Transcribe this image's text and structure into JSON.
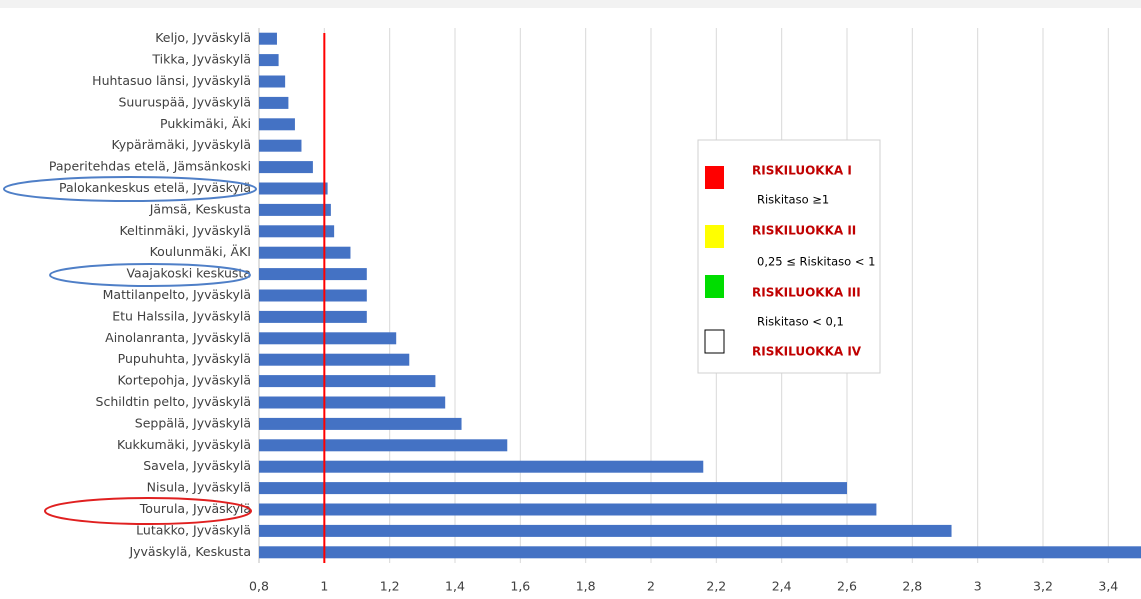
{
  "chart_data": {
    "type": "barh",
    "categories": [
      "Keljo, Jyväskylä",
      "Tikka, Jyväskylä",
      "Huhtasuo länsi, Jyväskylä",
      "Suuruspää, Jyväskylä",
      "Pukkimäki, Äki",
      "Kypärämäki, Jyväskylä",
      "Paperitehdas etelä, Jämsänkoski",
      "Palokankeskus etelä, Jyväskylä",
      "Jämsä, Keskusta",
      "Keltinmäki, Jyväskylä",
      "Koulunmäki, ÄKI",
      "Vaajakoski keskusta",
      "Mattilanpelto, Jyväskylä",
      "Etu Halssila, Jyväskylä",
      "Ainolanranta, Jyväskylä",
      "Pupuhuhta, Jyväskylä",
      "Kortepohja, Jyväskylä",
      "Schildtin pelto, Jyväskylä",
      "Seppälä, Jyväskylä",
      "Kukkumäki, Jyväskylä",
      "Savela, Jyväskylä",
      "Nisula, Jyväskylä",
      "Tourula, Jyväskylä",
      "Lutakko, Jyväskylä",
      "Jyväskylä, Keskusta"
    ],
    "values": [
      0.855,
      0.86,
      0.88,
      0.89,
      0.91,
      0.93,
      0.965,
      1.01,
      1.02,
      1.03,
      1.08,
      1.13,
      1.13,
      1.13,
      1.22,
      1.26,
      1.34,
      1.37,
      1.42,
      1.56,
      2.16,
      2.6,
      2.69,
      2.92,
      3.5
    ],
    "color": "#4472c4",
    "xlim": [
      0.8,
      3.5
    ],
    "xticks": [
      {
        "value": 0.8,
        "label": "0,8"
      },
      1,
      {
        "value": 1.2,
        "label": "1,2"
      },
      {
        "value": 1.4,
        "label": "1,4"
      },
      {
        "value": 1.6,
        "label": "1,6"
      },
      {
        "value": 1.8,
        "label": "1,8"
      },
      2,
      {
        "value": 2.2,
        "label": "2,2"
      },
      {
        "value": 2.4,
        "label": "2,4"
      },
      {
        "value": 2.6,
        "label": "2,6"
      },
      {
        "value": 2.8,
        "label": "2,8"
      },
      3,
      {
        "value": 3.2,
        "label": "3,2"
      },
      {
        "value": 3.4,
        "label": "3,4"
      }
    ],
    "grid": true,
    "reference_line": {
      "value": 1,
      "color": "#ff0000"
    },
    "legend": [
      {
        "name": "RISKILUOKKA I",
        "color": "#ff0000",
        "description": "Riskitaso ≥1"
      },
      {
        "name": "RISKILUOKKA II",
        "color": "#ffff00",
        "description": "0,25 ≤ Riskitaso < 1"
      },
      {
        "name": "RISKILUOKKA III",
        "color": "#00dd00",
        "description": "Riskitaso < 0,1"
      },
      {
        "name": "RISKILUOKKA IV",
        "color": "#ffffff"
      }
    ]
  }
}
